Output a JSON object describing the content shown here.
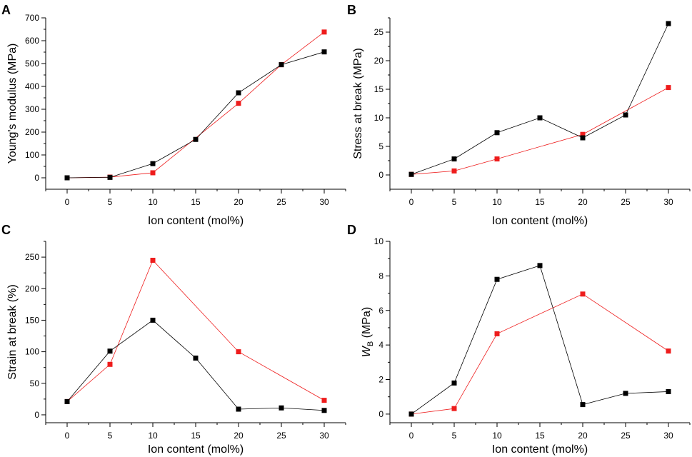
{
  "chart_data": [
    {
      "panel": "A",
      "type": "line",
      "x": [
        0,
        5,
        10,
        15,
        20,
        25,
        30
      ],
      "xlabel": "Ion content (mol%)",
      "ylabel": "Young's modulus (MPa)",
      "xlim": [
        -2.5,
        32.5
      ],
      "ylim": [
        -50,
        700
      ],
      "xticks": [
        0,
        5,
        10,
        15,
        20,
        25,
        30
      ],
      "yticks": [
        0,
        100,
        200,
        300,
        400,
        500,
        600,
        700
      ],
      "series": [
        {
          "name": "black",
          "color": "#000000",
          "x": [
            0,
            5,
            10,
            15,
            20,
            25,
            30
          ],
          "values": [
            0,
            2,
            62,
            168,
            372,
            495,
            551
          ]
        },
        {
          "name": "red",
          "color": "#ee1c1c",
          "x": [
            0,
            5,
            10,
            20,
            25,
            30
          ],
          "values": [
            0,
            3,
            22,
            326,
            495,
            638
          ]
        }
      ]
    },
    {
      "panel": "B",
      "type": "line",
      "x": [
        0,
        5,
        10,
        15,
        20,
        25,
        30
      ],
      "xlabel": "Ion content (mol%)",
      "ylabel": "Stress at break (MPa)",
      "xlim": [
        -2.5,
        32.5
      ],
      "ylim": [
        -2.5,
        27.5
      ],
      "xticks": [
        0,
        5,
        10,
        15,
        20,
        25,
        30
      ],
      "yticks": [
        0,
        5,
        10,
        15,
        20,
        25
      ],
      "series": [
        {
          "name": "black",
          "color": "#000000",
          "x": [
            0,
            5,
            10,
            15,
            20,
            25,
            30
          ],
          "values": [
            0.1,
            2.8,
            7.4,
            10.0,
            6.5,
            10.5,
            26.5
          ]
        },
        {
          "name": "red",
          "color": "#ee1c1c",
          "x": [
            0,
            5,
            10,
            20,
            30
          ],
          "values": [
            0.1,
            0.7,
            2.8,
            7.1,
            15.3
          ]
        }
      ]
    },
    {
      "panel": "C",
      "type": "line",
      "x": [
        0,
        5,
        10,
        15,
        20,
        25,
        30
      ],
      "xlabel": "Ion content (mol%)",
      "ylabel": "Strain at break (%)",
      "xlim": [
        -2.5,
        32.5
      ],
      "ylim": [
        -12.5,
        275
      ],
      "xticks": [
        0,
        5,
        10,
        15,
        20,
        25,
        30
      ],
      "yticks": [
        0,
        50,
        100,
        150,
        200,
        250
      ],
      "series": [
        {
          "name": "black",
          "color": "#000000",
          "x": [
            0,
            5,
            10,
            15,
            20,
            25,
            30
          ],
          "values": [
            21,
            101,
            150,
            90,
            9,
            11,
            7
          ]
        },
        {
          "name": "red",
          "color": "#ee1c1c",
          "x": [
            0,
            5,
            10,
            20,
            30
          ],
          "values": [
            21,
            80,
            245,
            100,
            23
          ]
        }
      ]
    },
    {
      "panel": "D",
      "type": "line",
      "x": [
        0,
        5,
        10,
        15,
        20,
        25,
        30
      ],
      "xlabel": "Ion content (mol%)",
      "ylabel": "W",
      "ylabel_sub": "B",
      "ylabel_suffix": " (MPa)",
      "xlim": [
        -2.5,
        32.5
      ],
      "ylim": [
        -0.5,
        10
      ],
      "xticks": [
        0,
        5,
        10,
        15,
        20,
        25,
        30
      ],
      "yticks": [
        0,
        2,
        4,
        6,
        8,
        10
      ],
      "series": [
        {
          "name": "black",
          "color": "#000000",
          "x": [
            0,
            5,
            10,
            15,
            20,
            25,
            30
          ],
          "values": [
            0.0,
            1.8,
            7.8,
            8.6,
            0.55,
            1.2,
            1.3
          ]
        },
        {
          "name": "red",
          "color": "#ee1c1c",
          "x": [
            0,
            5,
            10,
            20,
            30
          ],
          "values": [
            0.0,
            0.32,
            4.65,
            6.95,
            3.65
          ]
        }
      ]
    }
  ]
}
